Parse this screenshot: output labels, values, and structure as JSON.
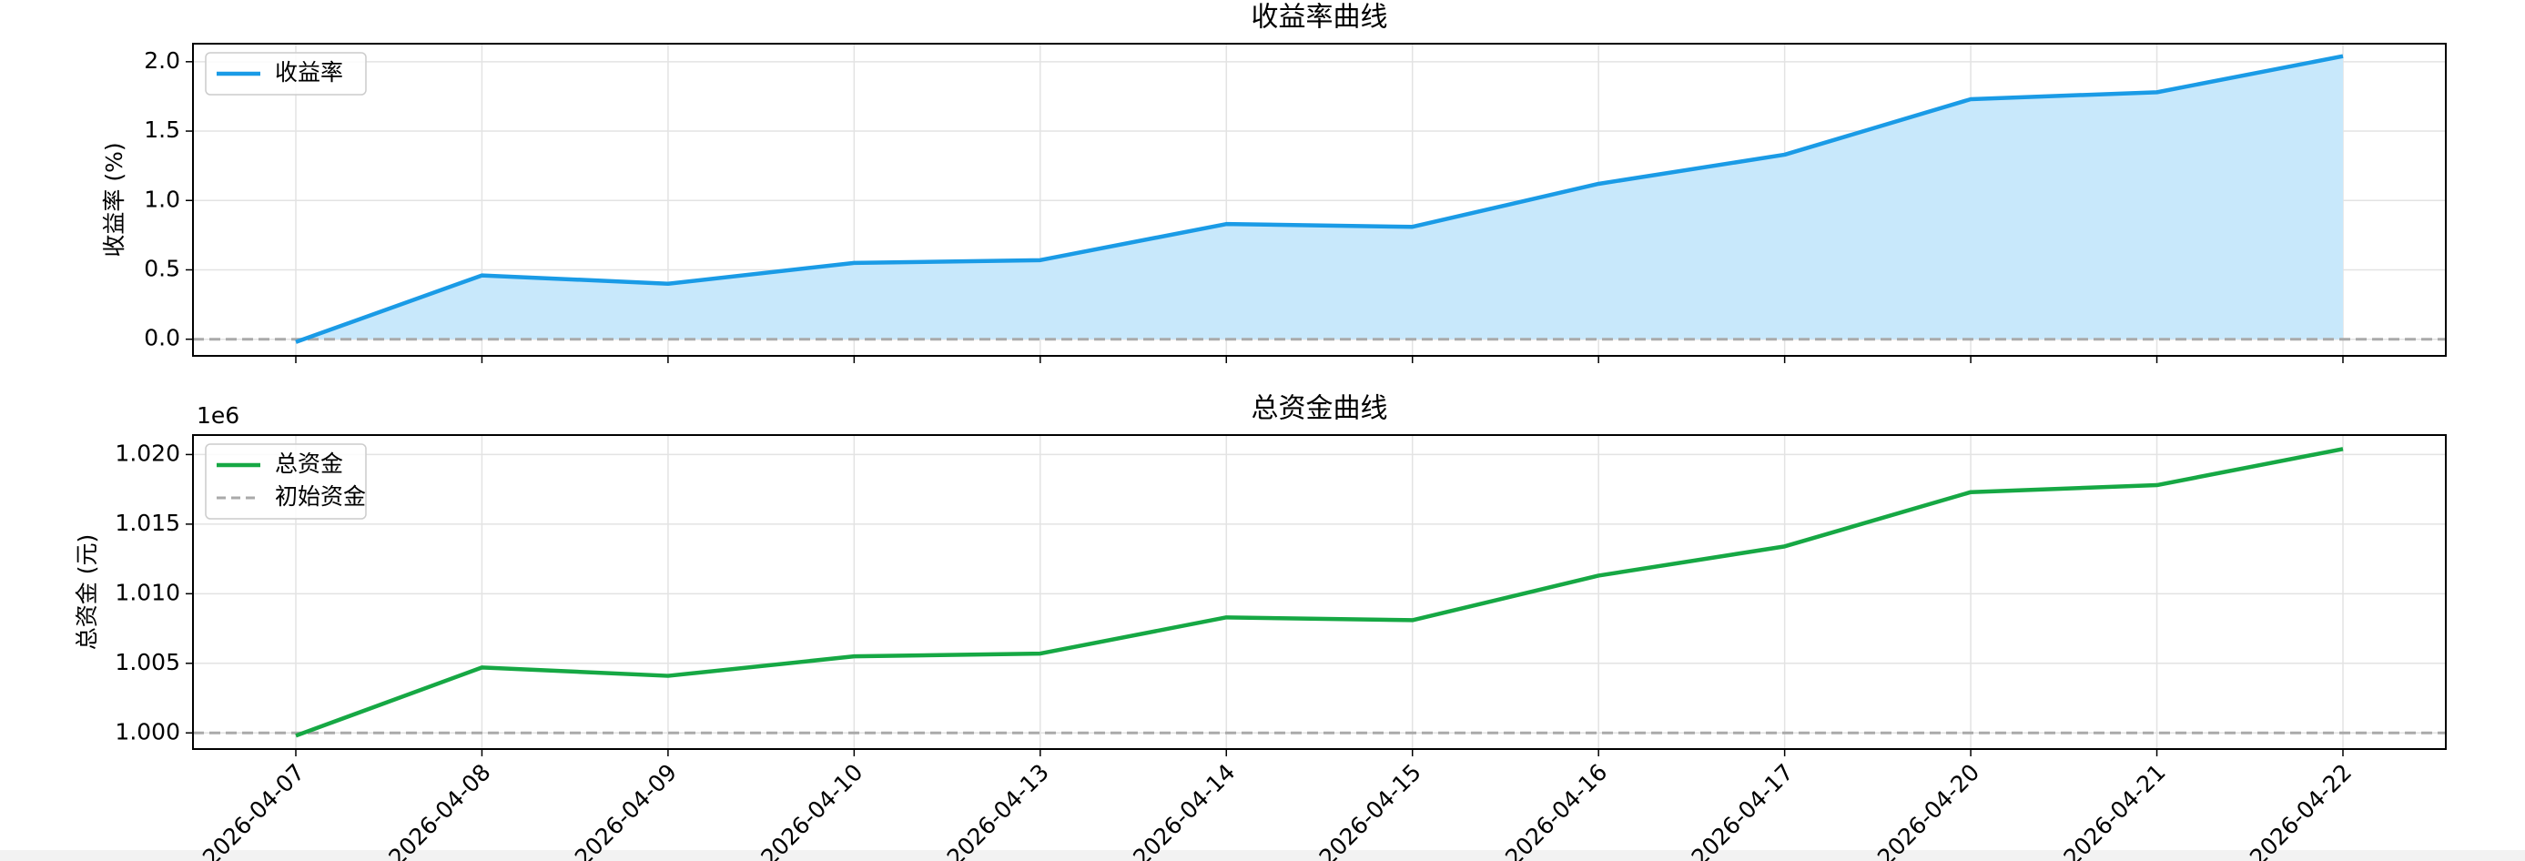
{
  "chart_data": [
    {
      "type": "area",
      "title": "收益率曲线",
      "ylabel": "收益率 (%)",
      "axis_color": "#1a9be6",
      "series": [
        {
          "name": "收益率",
          "color": "#1a9be6",
          "fill": "#c8e8fb",
          "values": [
            -0.02,
            0.46,
            0.4,
            0.55,
            0.57,
            0.83,
            0.81,
            1.12,
            1.33,
            1.73,
            1.78,
            2.04
          ]
        }
      ],
      "reference_line": {
        "value": 0,
        "color": "#aaaaaa"
      },
      "ylim": [
        -0.12,
        2.13
      ],
      "yticks": [
        {
          "value": 0,
          "label": "0.0"
        },
        {
          "value": 0.5,
          "label": "0.5"
        },
        {
          "value": 1,
          "label": "1.0"
        },
        {
          "value": 1.5,
          "label": "1.5"
        },
        {
          "value": 2,
          "label": "2.0"
        }
      ],
      "grid": true,
      "legend": "upper left"
    },
    {
      "type": "line",
      "title": "总资金曲线",
      "ylabel": "总资金 (元)",
      "axis_color": "#16a844",
      "offset_label": "1e6",
      "categories": [
        "2026-04-07",
        "2026-04-08",
        "2026-04-09",
        "2026-04-10",
        "2026-04-13",
        "2026-04-14",
        "2026-04-15",
        "2026-04-16",
        "2026-04-17",
        "2026-04-20",
        "2026-04-21",
        "2026-04-22"
      ],
      "series": [
        {
          "name": "总资金",
          "color": "#16a844",
          "values": [
            999800,
            1004700,
            1004100,
            1005500,
            1005700,
            1008300,
            1008100,
            1011300,
            1013400,
            1017300,
            1017800,
            1020400
          ]
        }
      ],
      "reference_line": {
        "name": "初始资金",
        "value": 1000000,
        "color": "#aaaaaa"
      },
      "ylim": [
        998840,
        1021400
      ],
      "yticks": [
        {
          "value": 1000000,
          "label": "1.000"
        },
        {
          "value": 1005000,
          "label": "1.005"
        },
        {
          "value": 1010000,
          "label": "1.010"
        },
        {
          "value": 1015000,
          "label": "1.015"
        },
        {
          "value": 1020000,
          "label": "1.020"
        }
      ],
      "grid": true,
      "legend": "upper left"
    }
  ]
}
